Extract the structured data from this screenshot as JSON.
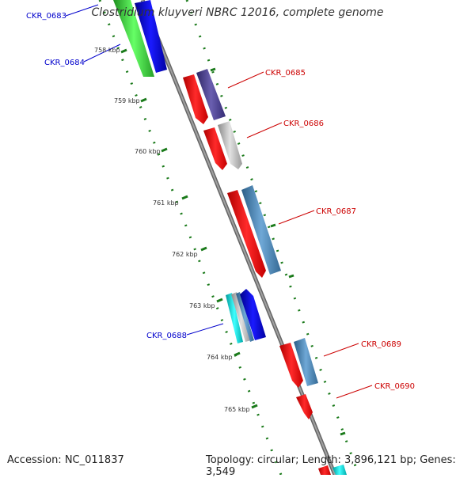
{
  "header": {
    "title": "Clostridium kluyveri NBRC 12016, complete genome"
  },
  "footer": {
    "accession": "Accession: NC_011837",
    "stats": "Topology: circular; Length: 3,896,121 bp; Genes: 3,549"
  },
  "scale": {
    "ticks": [
      "758 kbp",
      "759 kbp",
      "760 kbp",
      "761 kbp",
      "762 kbp",
      "763 kbp",
      "764 kbp",
      "765 kbp"
    ]
  },
  "genes": {
    "left": [
      "CKR_0683",
      "CKR_0684",
      "CKR_0688"
    ],
    "right": [
      "CKR_0685",
      "CKR_0686",
      "CKR_0687",
      "CKR_0689",
      "CKR_0690"
    ]
  },
  "colors": {
    "label_left": "#0000cc",
    "label_right": "#cc0000",
    "backbone": "#808080",
    "tick": "#1a7a1a",
    "red": "#ff0000",
    "blue": "#0000ee",
    "green": "#33cc33",
    "purple": "#4b3f8c",
    "gray": "#b8b8b8",
    "steel": "#4682b4",
    "cyan": "#00cccc"
  }
}
